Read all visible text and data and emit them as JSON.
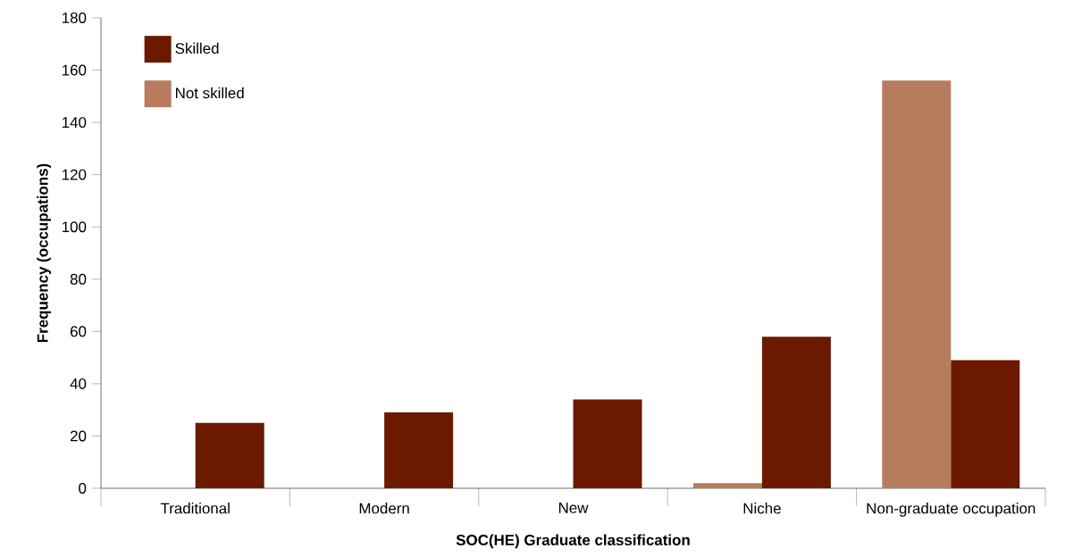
{
  "chart_data": {
    "type": "bar",
    "xlabel": "SOC(HE) Graduate classification",
    "ylabel": "Frequency (occupations)",
    "categories": [
      "Traditional",
      "Modern",
      "New",
      "Niche",
      "Non-graduate occupation"
    ],
    "series": [
      {
        "name": "Not skilled",
        "color": "#b77c5e",
        "values": [
          0,
          0,
          0,
          2,
          156
        ]
      },
      {
        "name": "Skilled",
        "color": "#6b1a00",
        "values": [
          25,
          29,
          34,
          58,
          49
        ]
      }
    ],
    "ylim": [
      0,
      180
    ],
    "yticks": [
      0,
      20,
      40,
      60,
      80,
      100,
      120,
      140,
      160,
      180
    ],
    "grid": false,
    "legend": "top left"
  }
}
